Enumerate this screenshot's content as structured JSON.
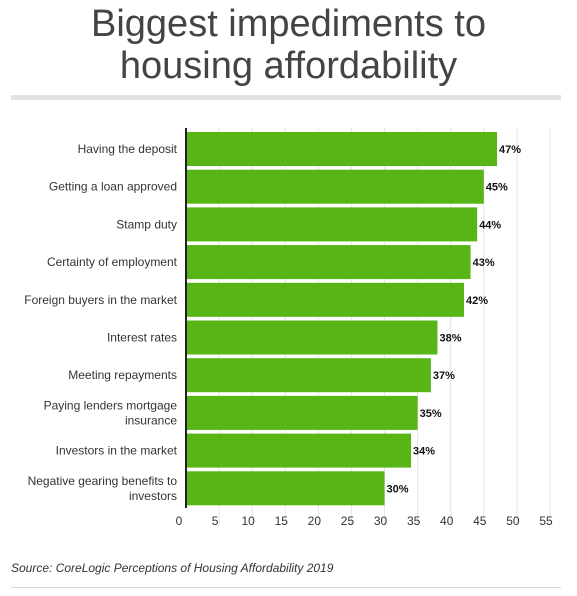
{
  "header": {
    "title_line1": "Biggest impediments to",
    "title_line2": "housing affordability"
  },
  "footer": {
    "source": "Source: CoreLogic Perceptions of Housing Affordability 2019"
  },
  "colors": {
    "bar": "#57b615",
    "grid": "#e4e4e4",
    "axis": "#222222"
  },
  "chart_data": {
    "type": "bar",
    "orientation": "horizontal",
    "title": "Biggest impediments to housing affordability",
    "categories": [
      [
        "Having the deposit"
      ],
      [
        "Getting a loan approved"
      ],
      [
        "Stamp duty"
      ],
      [
        "Certainty of employment"
      ],
      [
        "Foreign buyers in the market"
      ],
      [
        "Interest rates"
      ],
      [
        "Meeting repayments"
      ],
      [
        "Paying lenders mortgage",
        "insurance"
      ],
      [
        "Investors in the market"
      ],
      [
        "Negative gearing benefits to",
        "investors"
      ]
    ],
    "values": [
      47,
      45,
      44,
      43,
      42,
      38,
      37,
      35,
      34,
      30
    ],
    "value_labels": [
      "47%",
      "45%",
      "44%",
      "43%",
      "42%",
      "38%",
      "37%",
      "35%",
      "34%",
      "30%"
    ],
    "xlim": [
      0,
      55
    ],
    "xticks": [
      0,
      5,
      10,
      15,
      20,
      25,
      30,
      35,
      40,
      45,
      50,
      55
    ],
    "grid": true,
    "legend": "none"
  }
}
